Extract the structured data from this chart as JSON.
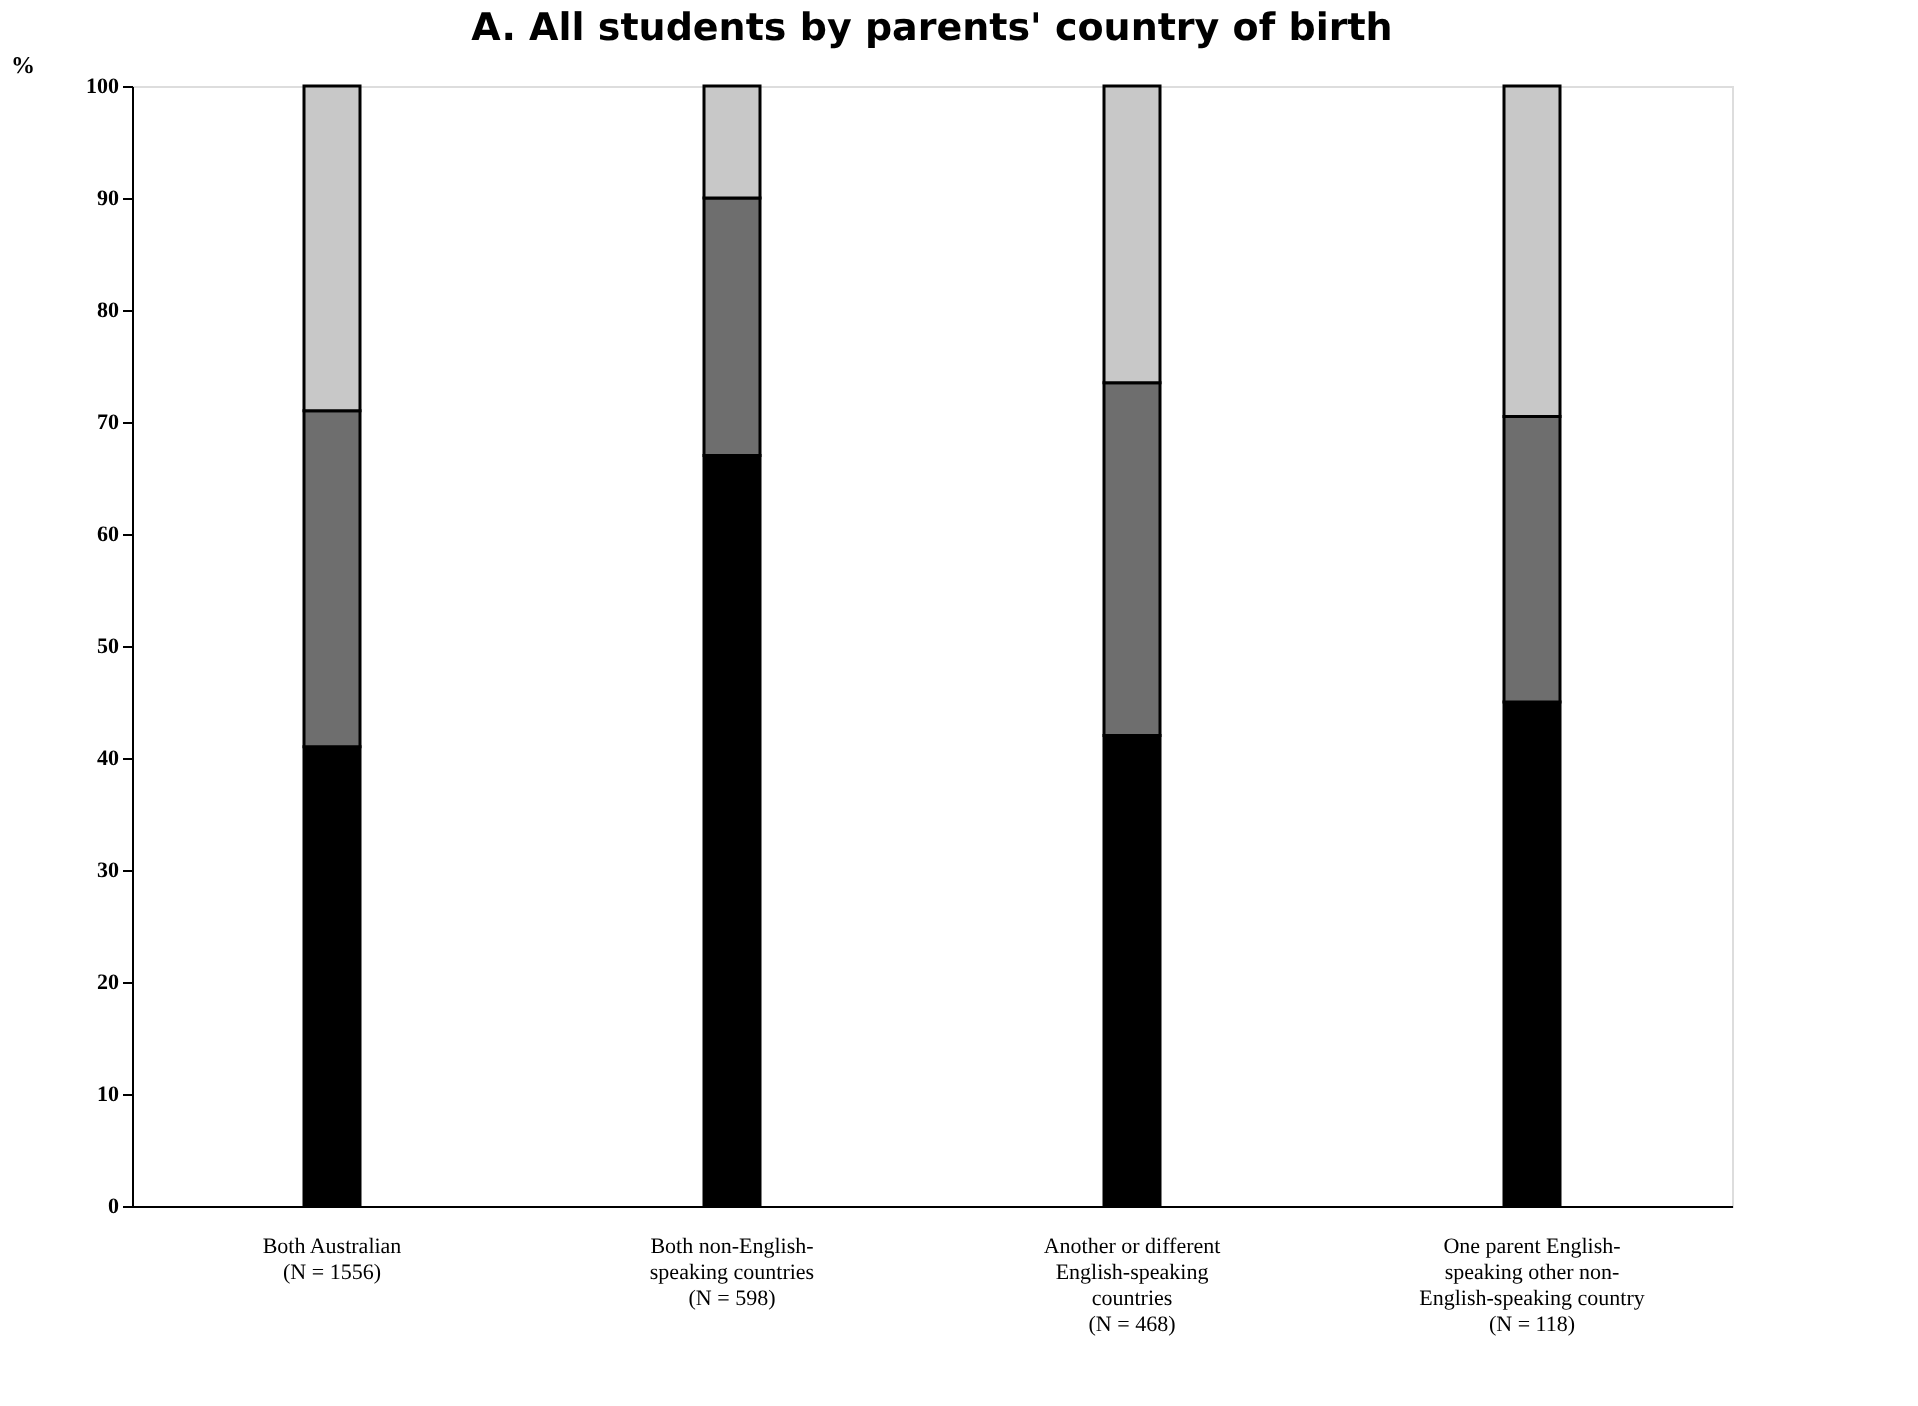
{
  "chart_data": {
    "type": "bar",
    "title": "A.  All students by parents' country of birth",
    "ylabel": "%",
    "categories": [
      "Both Australian\n(N = 1556)",
      "Both non-English-\nspeaking countries\n(N = 598)",
      "Another or different\nEnglish-speaking\ncountries\n(N = 468)",
      "One parent English-\nspeaking other non-\nEnglish-speaking country\n(N = 118)"
    ],
    "stacked": true,
    "grid": false,
    "series": [
      {
        "color": "#000000",
        "values": [
          41,
          67,
          42,
          45
        ]
      },
      {
        "color": "#6e6e6e",
        "values": [
          30,
          23,
          31.5,
          25.5
        ]
      },
      {
        "color": "#c8c8c8",
        "values": [
          29,
          10,
          26.5,
          29.5
        ]
      }
    ],
    "ylim": [
      0,
      100
    ],
    "yticks": [
      0,
      10,
      20,
      30,
      40,
      50,
      60,
      70,
      80,
      90,
      100
    ]
  }
}
